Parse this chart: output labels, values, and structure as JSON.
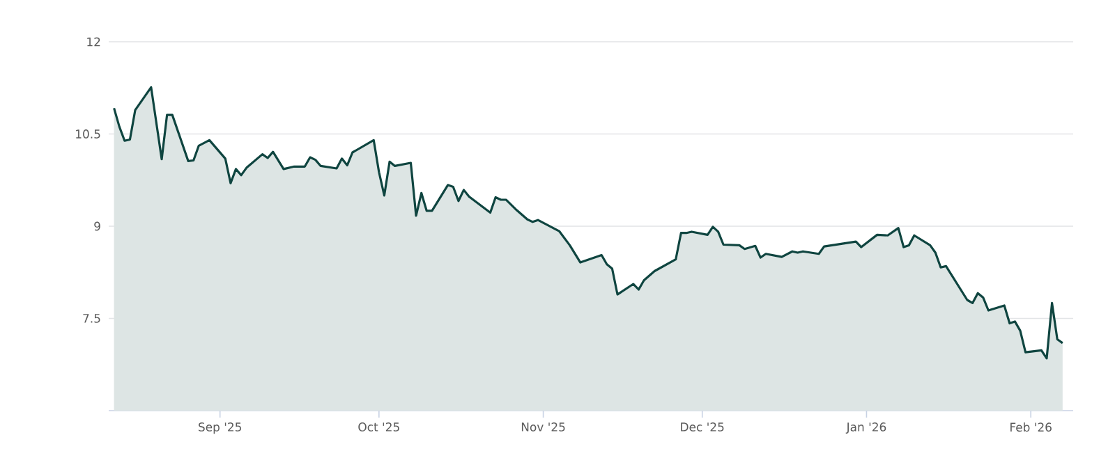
{
  "chart_data": {
    "type": "area",
    "x": [
      "2025-08-12",
      "2025-08-13",
      "2025-08-14",
      "2025-08-15",
      "2025-08-16",
      "2025-08-19",
      "2025-08-21",
      "2025-08-22",
      "2025-08-23",
      "2025-08-26",
      "2025-08-27",
      "2025-08-28",
      "2025-08-30",
      "2025-09-02",
      "2025-09-03",
      "2025-09-04",
      "2025-09-05",
      "2025-09-06",
      "2025-09-09",
      "2025-09-10",
      "2025-09-11",
      "2025-09-13",
      "2025-09-15",
      "2025-09-17",
      "2025-09-18",
      "2025-09-19",
      "2025-09-20",
      "2025-09-23",
      "2025-09-24",
      "2025-09-25",
      "2025-09-26",
      "2025-09-30",
      "2025-10-01",
      "2025-10-02",
      "2025-10-03",
      "2025-10-04",
      "2025-10-07",
      "2025-10-08",
      "2025-10-09",
      "2025-10-10",
      "2025-10-11",
      "2025-10-14",
      "2025-10-15",
      "2025-10-16",
      "2025-10-17",
      "2025-10-18",
      "2025-10-22",
      "2025-10-23",
      "2025-10-24",
      "2025-10-25",
      "2025-10-27",
      "2025-10-29",
      "2025-10-30",
      "2025-10-31",
      "2025-11-04",
      "2025-11-06",
      "2025-11-08",
      "2025-11-12",
      "2025-11-13",
      "2025-11-14",
      "2025-11-15",
      "2025-11-18",
      "2025-11-19",
      "2025-11-20",
      "2025-11-22",
      "2025-11-26",
      "2025-11-27",
      "2025-11-28",
      "2025-11-29",
      "2025-12-02",
      "2025-12-03",
      "2025-12-04",
      "2025-12-05",
      "2025-12-08",
      "2025-12-09",
      "2025-12-11",
      "2025-12-12",
      "2025-12-13",
      "2025-12-16",
      "2025-12-18",
      "2025-12-19",
      "2025-12-20",
      "2025-12-23",
      "2025-12-24",
      "2025-12-30",
      "2025-12-31",
      "2026-01-03",
      "2026-01-05",
      "2026-01-07",
      "2026-01-08",
      "2026-01-09",
      "2026-01-10",
      "2026-01-13",
      "2026-01-14",
      "2026-01-15",
      "2026-01-16",
      "2026-01-20",
      "2026-01-21",
      "2026-01-22",
      "2026-01-23",
      "2026-01-24",
      "2026-01-27",
      "2026-01-28",
      "2026-01-29",
      "2026-01-30",
      "2026-01-31",
      "2026-02-03",
      "2026-02-04",
      "2026-02-05",
      "2026-02-06",
      "2026-02-07"
    ],
    "series": [
      {
        "color": "#0f4540",
        "values": [
          10.92,
          10.62,
          10.39,
          10.41,
          10.89,
          11.26,
          10.09,
          10.81,
          10.81,
          10.06,
          10.07,
          10.31,
          10.4,
          10.1,
          9.7,
          9.93,
          9.83,
          9.95,
          10.17,
          10.11,
          10.21,
          9.93,
          9.97,
          9.97,
          10.12,
          10.08,
          9.98,
          9.94,
          10.1,
          9.99,
          10.2,
          10.4,
          9.88,
          9.5,
          10.05,
          9.98,
          10.03,
          9.17,
          9.54,
          9.25,
          9.25,
          9.67,
          9.64,
          9.41,
          9.59,
          9.48,
          9.22,
          9.47,
          9.43,
          9.43,
          9.26,
          9.11,
          9.07,
          9.1,
          8.92,
          8.69,
          8.41,
          8.53,
          8.38,
          8.31,
          7.89,
          8.06,
          7.97,
          8.12,
          8.27,
          8.46,
          8.89,
          8.89,
          8.91,
          8.86,
          8.99,
          8.91,
          8.7,
          8.69,
          8.63,
          8.68,
          8.49,
          8.55,
          8.5,
          8.59,
          8.57,
          8.59,
          8.55,
          8.67,
          8.75,
          8.66,
          8.86,
          8.85,
          8.97,
          8.66,
          8.69,
          8.85,
          8.69,
          8.57,
          8.33,
          8.35,
          7.8,
          7.75,
          7.91,
          7.84,
          7.63,
          7.71,
          7.42,
          7.45,
          7.3,
          6.95,
          6.98,
          6.85,
          7.75,
          7.16,
          7.1
        ]
      }
    ],
    "xlim": [
      "2025-08-11",
      "2026-02-09"
    ],
    "xticks": [
      {
        "value": "2025-09-01",
        "label": "Sep '25"
      },
      {
        "value": "2025-10-01",
        "label": "Oct '25"
      },
      {
        "value": "2025-11-01",
        "label": "Nov '25"
      },
      {
        "value": "2025-12-01",
        "label": "Dec '25"
      },
      {
        "value": "2026-01-01",
        "label": "Jan '26"
      },
      {
        "value": "2026-02-01",
        "label": "Feb '26"
      }
    ],
    "ylim": [
      6,
      12
    ],
    "yticks": [
      7.5,
      9,
      10.5,
      12
    ],
    "grid": "y"
  }
}
